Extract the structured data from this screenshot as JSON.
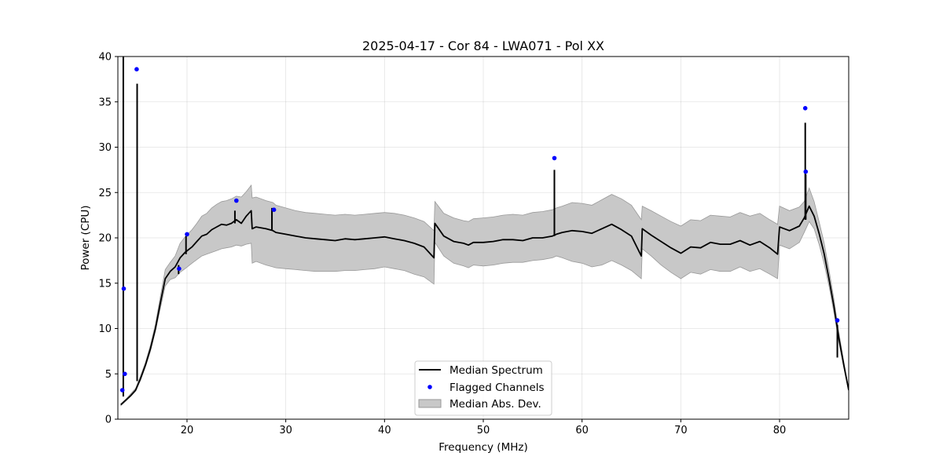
{
  "chart_data": {
    "type": "line",
    "title": "2025-04-17 - Cor 84 - LWA071 - Pol XX",
    "xlabel": "Frequency (MHz)",
    "ylabel": "Power (CPU)",
    "xlim": [
      13.0,
      87.0
    ],
    "ylim": [
      0,
      40
    ],
    "x_ticks": [
      20,
      30,
      40,
      50,
      60,
      70,
      80
    ],
    "y_ticks": [
      0,
      5,
      10,
      15,
      20,
      25,
      30,
      35,
      40
    ],
    "grid": true,
    "legend": {
      "placement": "lower-center",
      "entries": [
        "Median Spectrum",
        "Flagged Channels",
        "Median Abs. Dev."
      ]
    },
    "colors": {
      "median": "#000000",
      "flagged": "#0000ff",
      "band_fill": "#c8c8c8",
      "band_edge": "#999999"
    },
    "series": [
      {
        "name": "Median Spectrum",
        "x": [
          13.3,
          13.8,
          14.3,
          14.8,
          15.3,
          15.8,
          16.3,
          16.8,
          17.3,
          17.8,
          18.3,
          18.8,
          19.3,
          19.8,
          20.5,
          21.0,
          21.5,
          22.0,
          22.5,
          23.0,
          23.5,
          24.0,
          24.5,
          25.0,
          25.5,
          26.0,
          26.5,
          26.6,
          27.0,
          28.0,
          28.7,
          29.0,
          30.0,
          31.0,
          32.0,
          33.0,
          34.0,
          35.0,
          36.0,
          37.0,
          38.0,
          39.0,
          40.0,
          41.0,
          42.0,
          43.0,
          44.0,
          45.0,
          45.1,
          46.0,
          47.0,
          48.0,
          48.5,
          49.0,
          50.0,
          51.0,
          52.0,
          53.0,
          54.0,
          55.0,
          56.0,
          57.0,
          57.4,
          58.0,
          59.0,
          60.0,
          61.0,
          62.0,
          63.0,
          64.0,
          65.0,
          66.0,
          66.1,
          67.0,
          68.0,
          69.0,
          70.0,
          71.0,
          72.0,
          73.0,
          74.0,
          75.0,
          76.0,
          77.0,
          78.0,
          79.0,
          79.8,
          80.0,
          81.0,
          82.0,
          82.5,
          83.0,
          83.5,
          84.0,
          84.5,
          85.0,
          85.5,
          86.0,
          86.5,
          87.0
        ],
        "values": [
          1.6,
          2.1,
          2.6,
          3.2,
          4.5,
          6.0,
          7.8,
          10.0,
          12.8,
          15.5,
          16.3,
          16.8,
          17.8,
          18.4,
          19.0,
          19.6,
          20.2,
          20.4,
          20.9,
          21.2,
          21.5,
          21.4,
          21.6,
          22.0,
          21.6,
          22.4,
          23.0,
          21.0,
          21.2,
          21.0,
          20.8,
          20.6,
          20.4,
          20.2,
          20.0,
          19.9,
          19.8,
          19.7,
          19.9,
          19.8,
          19.9,
          20.0,
          20.1,
          19.9,
          19.7,
          19.4,
          19.0,
          17.8,
          21.6,
          20.2,
          19.6,
          19.4,
          19.2,
          19.5,
          19.5,
          19.6,
          19.8,
          19.8,
          19.7,
          20.0,
          20.0,
          20.2,
          20.4,
          20.6,
          20.8,
          20.7,
          20.5,
          21.0,
          21.5,
          20.9,
          20.2,
          18.0,
          21.0,
          20.3,
          19.6,
          18.9,
          18.3,
          19.0,
          18.9,
          19.5,
          19.3,
          19.3,
          19.7,
          19.2,
          19.6,
          18.9,
          18.2,
          21.2,
          20.8,
          21.3,
          22.2,
          23.5,
          22.4,
          20.5,
          18.3,
          15.5,
          12.5,
          9.0,
          6.0,
          3.2
        ],
        "mad_lower": [
          1.5,
          2.0,
          2.5,
          3.1,
          4.3,
          5.8,
          7.5,
          9.7,
          12.2,
          14.7,
          15.4,
          15.6,
          16.2,
          16.6,
          17.2,
          17.6,
          18.0,
          18.2,
          18.4,
          18.6,
          18.8,
          18.9,
          19.0,
          19.2,
          19.1,
          19.3,
          19.4,
          17.2,
          17.4,
          17.0,
          16.8,
          16.7,
          16.6,
          16.5,
          16.4,
          16.3,
          16.3,
          16.3,
          16.4,
          16.4,
          16.5,
          16.6,
          16.8,
          16.6,
          16.4,
          16.0,
          15.7,
          14.9,
          19.5,
          18.0,
          17.2,
          16.9,
          16.7,
          17.0,
          16.9,
          17.0,
          17.2,
          17.3,
          17.3,
          17.5,
          17.6,
          17.8,
          18.0,
          17.8,
          17.4,
          17.2,
          16.8,
          17.0,
          17.5,
          17.0,
          16.4,
          15.5,
          18.8,
          18.0,
          17.0,
          16.2,
          15.5,
          16.2,
          16.0,
          16.5,
          16.3,
          16.3,
          16.8,
          16.3,
          16.6,
          16.0,
          15.5,
          19.2,
          18.8,
          19.5,
          20.6,
          21.8,
          21.0,
          19.3,
          17.2,
          14.7,
          11.8,
          8.5,
          5.7,
          3.1
        ],
        "mad_upper": [
          1.7,
          2.2,
          2.8,
          3.4,
          4.8,
          6.3,
          8.2,
          10.5,
          13.5,
          16.5,
          17.3,
          18.0,
          19.4,
          20.1,
          20.9,
          21.6,
          22.4,
          22.7,
          23.3,
          23.7,
          24.0,
          24.1,
          24.3,
          24.6,
          24.5,
          25.1,
          25.8,
          24.4,
          24.5,
          24.1,
          23.9,
          23.6,
          23.3,
          23.0,
          22.8,
          22.7,
          22.6,
          22.5,
          22.6,
          22.5,
          22.6,
          22.7,
          22.8,
          22.7,
          22.5,
          22.2,
          21.8,
          20.8,
          24.0,
          22.7,
          22.2,
          21.9,
          21.8,
          22.1,
          22.2,
          22.3,
          22.5,
          22.6,
          22.5,
          22.8,
          22.9,
          23.1,
          23.3,
          23.5,
          23.9,
          23.8,
          23.6,
          24.2,
          24.8,
          24.3,
          23.6,
          22.0,
          23.5,
          23.0,
          22.4,
          21.8,
          21.3,
          22.0,
          21.9,
          22.5,
          22.4,
          22.3,
          22.8,
          22.4,
          22.7,
          22.0,
          21.5,
          23.5,
          23.0,
          23.4,
          24.0,
          25.5,
          24.0,
          21.8,
          19.5,
          16.5,
          13.3,
          9.6,
          6.4,
          3.3
        ]
      },
      {
        "name": "Spikes",
        "x": [
          13.55,
          14.95,
          19.15,
          19.9,
          24.85,
          28.6,
          57.2,
          82.6,
          82.65,
          85.85
        ],
        "values": [
          40.0,
          37.0,
          17.0,
          20.2,
          23.0,
          23.3,
          27.5,
          32.7,
          27.0,
          10.4
        ],
        "bases": [
          2.5,
          4.2,
          16.0,
          18.2,
          21.6,
          20.9,
          20.2,
          22.0,
          22.0,
          6.8
        ]
      },
      {
        "name": "Flagged Channels",
        "x": [
          13.45,
          13.6,
          13.7,
          14.9,
          19.2,
          20.0,
          25.0,
          28.8,
          57.2,
          82.6,
          82.65,
          85.85
        ],
        "values": [
          3.2,
          14.4,
          5.0,
          38.6,
          16.6,
          20.4,
          24.1,
          23.1,
          28.8,
          34.3,
          27.3,
          10.9
        ]
      }
    ]
  }
}
